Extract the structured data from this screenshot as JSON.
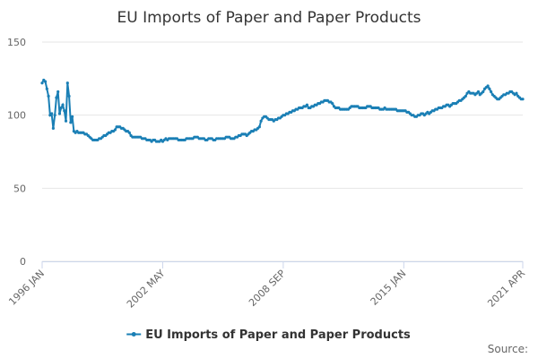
{
  "chart_data": {
    "type": "line",
    "title": "EU Imports of Paper and Paper Products",
    "source": "Source:",
    "categories": [
      "1996 JAN",
      null,
      null,
      null,
      null,
      null,
      null,
      null,
      null,
      null,
      null,
      null,
      null,
      null,
      null,
      null,
      null,
      null,
      null,
      null,
      null,
      null,
      null,
      null,
      null,
      null,
      null,
      null,
      null,
      null,
      null,
      null,
      null,
      null,
      null,
      null,
      null,
      null,
      null,
      null,
      null,
      null,
      null,
      null,
      null,
      null,
      null,
      null,
      null,
      null,
      null,
      null,
      null,
      null,
      null,
      null,
      null,
      null,
      null,
      null,
      null,
      null,
      null,
      null,
      null,
      null,
      null,
      null,
      null,
      null,
      null,
      null,
      null,
      null,
      null,
      null,
      "2002 MAY",
      null,
      null,
      null,
      null,
      null,
      null,
      null,
      null,
      null,
      null,
      null,
      null,
      null,
      null,
      null,
      null,
      null,
      null,
      null,
      null,
      null,
      null,
      null,
      null,
      null,
      null,
      null,
      null,
      null,
      null,
      null,
      null,
      null,
      null,
      null,
      null,
      null,
      null,
      null,
      null,
      null,
      null,
      null,
      null,
      null,
      null,
      null,
      null,
      null,
      null,
      null,
      null,
      null,
      null,
      null,
      null,
      null,
      null,
      null,
      null,
      null,
      null,
      null,
      null,
      null,
      null,
      null,
      null,
      null,
      null,
      null,
      null,
      null,
      null,
      null,
      "2008 SEP",
      null,
      null,
      null,
      null,
      null,
      null,
      null,
      null,
      null,
      null,
      null,
      null,
      null,
      null,
      null,
      null,
      null,
      null,
      null,
      null,
      null,
      null,
      null,
      null,
      null,
      null,
      null,
      null,
      null,
      null,
      null,
      null,
      null,
      null,
      null,
      null,
      null,
      null,
      null,
      null,
      null,
      null,
      null,
      null,
      null,
      null,
      null,
      null,
      null,
      null,
      null,
      null,
      null,
      null,
      null,
      null,
      null,
      null,
      null,
      null,
      null,
      null,
      null,
      null,
      null,
      null,
      null,
      null,
      null,
      null,
      null,
      null,
      null,
      null,
      null,
      "2015 JAN",
      null,
      null,
      null,
      null,
      null,
      null,
      null,
      null,
      null,
      null,
      null,
      null,
      null,
      null,
      null,
      null,
      null,
      null,
      null,
      null,
      null,
      null,
      null,
      null,
      null,
      null,
      null,
      null,
      null,
      null,
      null,
      null,
      null,
      null,
      null,
      null,
      null,
      null,
      null,
      null,
      null,
      null,
      null,
      null,
      null,
      null,
      null,
      null,
      null,
      null,
      null,
      null,
      null,
      null,
      null,
      null,
      null,
      null,
      null,
      null,
      null,
      null,
      null,
      null,
      null,
      null,
      null,
      null,
      null,
      null,
      null,
      null,
      null,
      null,
      "2021 APR"
    ],
    "series": [
      {
        "name": "EU Imports of Paper and Paper Products",
        "color": "#1a7fb5",
        "values": [
          122,
          124,
          123,
          118,
          113,
          100,
          101,
          91,
          100,
          112,
          116,
          101,
          105,
          107,
          103,
          96,
          122,
          113,
          95,
          99,
          89,
          88,
          89,
          88,
          88,
          88,
          88,
          87,
          87,
          86,
          85,
          84,
          83,
          83,
          83,
          83,
          84,
          84,
          85,
          86,
          86,
          87,
          88,
          88,
          89,
          89,
          90,
          92,
          92,
          92,
          91,
          91,
          90,
          89,
          89,
          88,
          86,
          85,
          85,
          85,
          85,
          85,
          85,
          84,
          84,
          84,
          83,
          83,
          83,
          82,
          83,
          83,
          82,
          82,
          82,
          83,
          82,
          83,
          84,
          83,
          84,
          84,
          84,
          84,
          84,
          84,
          83,
          83,
          83,
          83,
          83,
          84,
          84,
          84,
          84,
          84,
          85,
          85,
          85,
          84,
          84,
          84,
          84,
          83,
          83,
          84,
          84,
          84,
          83,
          83,
          84,
          84,
          84,
          84,
          84,
          84,
          85,
          85,
          85,
          84,
          84,
          84,
          85,
          85,
          86,
          86,
          87,
          87,
          87,
          86,
          87,
          88,
          89,
          89,
          90,
          90,
          91,
          92,
          96,
          98,
          99,
          99,
          98,
          97,
          97,
          97,
          96,
          97,
          97,
          98,
          98,
          99,
          100,
          100,
          101,
          101,
          102,
          102,
          103,
          103,
          104,
          104,
          105,
          105,
          105,
          106,
          106,
          107,
          105,
          105,
          106,
          106,
          107,
          107,
          108,
          108,
          109,
          109,
          110,
          110,
          110,
          109,
          109,
          108,
          106,
          105,
          105,
          105,
          104,
          104,
          104,
          104,
          104,
          104,
          105,
          106,
          106,
          106,
          106,
          106,
          105,
          105,
          105,
          105,
          105,
          106,
          106,
          106,
          105,
          105,
          105,
          105,
          105,
          104,
          104,
          104,
          105,
          104,
          104,
          104,
          104,
          104,
          104,
          104,
          103,
          103,
          103,
          103,
          103,
          103,
          102,
          102,
          101,
          100,
          100,
          99,
          99,
          100,
          100,
          101,
          101,
          100,
          101,
          102,
          101,
          102,
          103,
          103,
          104,
          104,
          105,
          105,
          105,
          106,
          106,
          107,
          107,
          106,
          107,
          108,
          108,
          108,
          109,
          110,
          110,
          111,
          112,
          113,
          115,
          116,
          115,
          115,
          115,
          114,
          115,
          116,
          114,
          115,
          116,
          118,
          119,
          120,
          118,
          116,
          114,
          113,
          112,
          111,
          111,
          112,
          113,
          114,
          114,
          115,
          115,
          116,
          116,
          115,
          114,
          115,
          113,
          112,
          111,
          111
        ]
      }
    ],
    "ylim": [
      0,
      150
    ],
    "yticks": [
      0,
      50,
      100,
      150
    ],
    "grid": true,
    "legend": "bottom"
  }
}
